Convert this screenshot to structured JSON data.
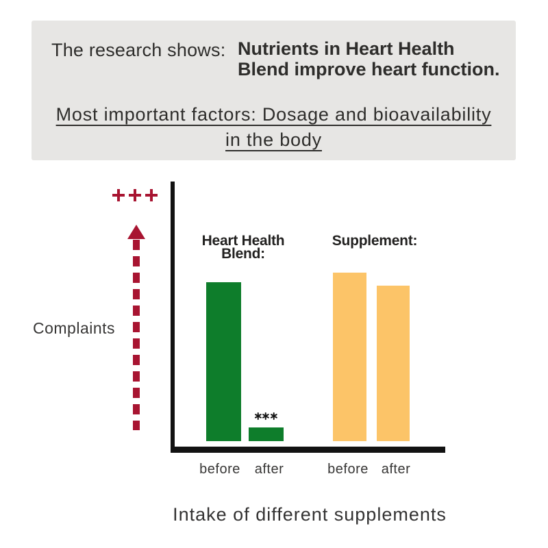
{
  "header": {
    "intro": "The research shows:",
    "headline": [
      "Nutrients in Heart Health",
      "Blend improve heart function."
    ],
    "factors": [
      "Most important factors: Dosage and bioavailability",
      "in the body"
    ]
  },
  "chart_data": {
    "type": "bar",
    "title": "Intake of different supplements",
    "ylabel": "Complaints",
    "y_axis_annotation": "+++",
    "x_categories": [
      "before",
      "after",
      "before",
      "after"
    ],
    "series": [
      {
        "name": "Heart Health Blend:",
        "color": "#0e7d2b",
        "values": [
          94.3,
          8.1
        ],
        "annotations": [
          null,
          "***"
        ]
      },
      {
        "name": "Supplement:",
        "color": "#fcc468",
        "values": [
          100,
          92.3
        ],
        "annotations": [
          null,
          null
        ]
      }
    ],
    "ylim": [
      0,
      100
    ],
    "legend_position": "above-bars",
    "grid": false
  },
  "colors": {
    "accent_red": "#a81431",
    "green": "#0e7d2b",
    "orange": "#fcc468",
    "panel_bg": "#e7e6e4",
    "axis": "#121212",
    "text": "#2e2d2b"
  }
}
